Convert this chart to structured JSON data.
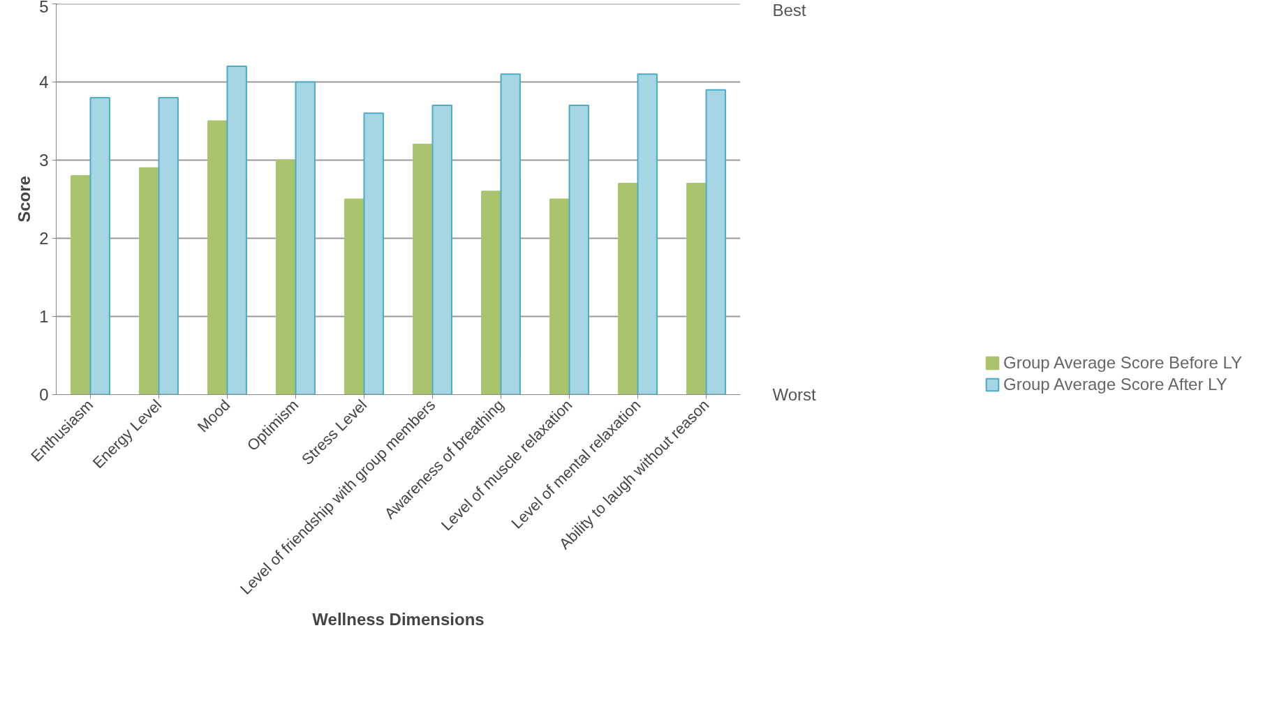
{
  "chart_data": {
    "type": "bar",
    "xlabel": "Wellness Dimensions",
    "ylabel": "Score",
    "categories": [
      "Enthusiasm",
      "Energy Level",
      "Mood",
      "Optimism",
      "Stress Level",
      "Level of friendship with group members",
      "Awareness of breathing",
      "Level of muscle relaxation",
      "Level of mental relaxation",
      "Ability to laugh without reason"
    ],
    "series": [
      {
        "name": "Group Average Score Before LY",
        "color": "#a9c46c",
        "values": [
          2.8,
          2.9,
          3.5,
          3.0,
          2.5,
          3.2,
          2.6,
          2.5,
          2.7,
          2.7
        ]
      },
      {
        "name": "Group Average Score After LY",
        "color": "#a6d6e3",
        "values": [
          3.8,
          3.8,
          4.2,
          4.0,
          3.6,
          3.7,
          4.1,
          3.7,
          4.1,
          3.9
        ]
      }
    ],
    "ylim": [
      0,
      5
    ],
    "yticks": [
      0,
      1,
      2,
      3,
      4,
      5
    ],
    "annotations": [
      "Best",
      "Worst"
    ],
    "grid": "y",
    "legend": "bottom right"
  }
}
